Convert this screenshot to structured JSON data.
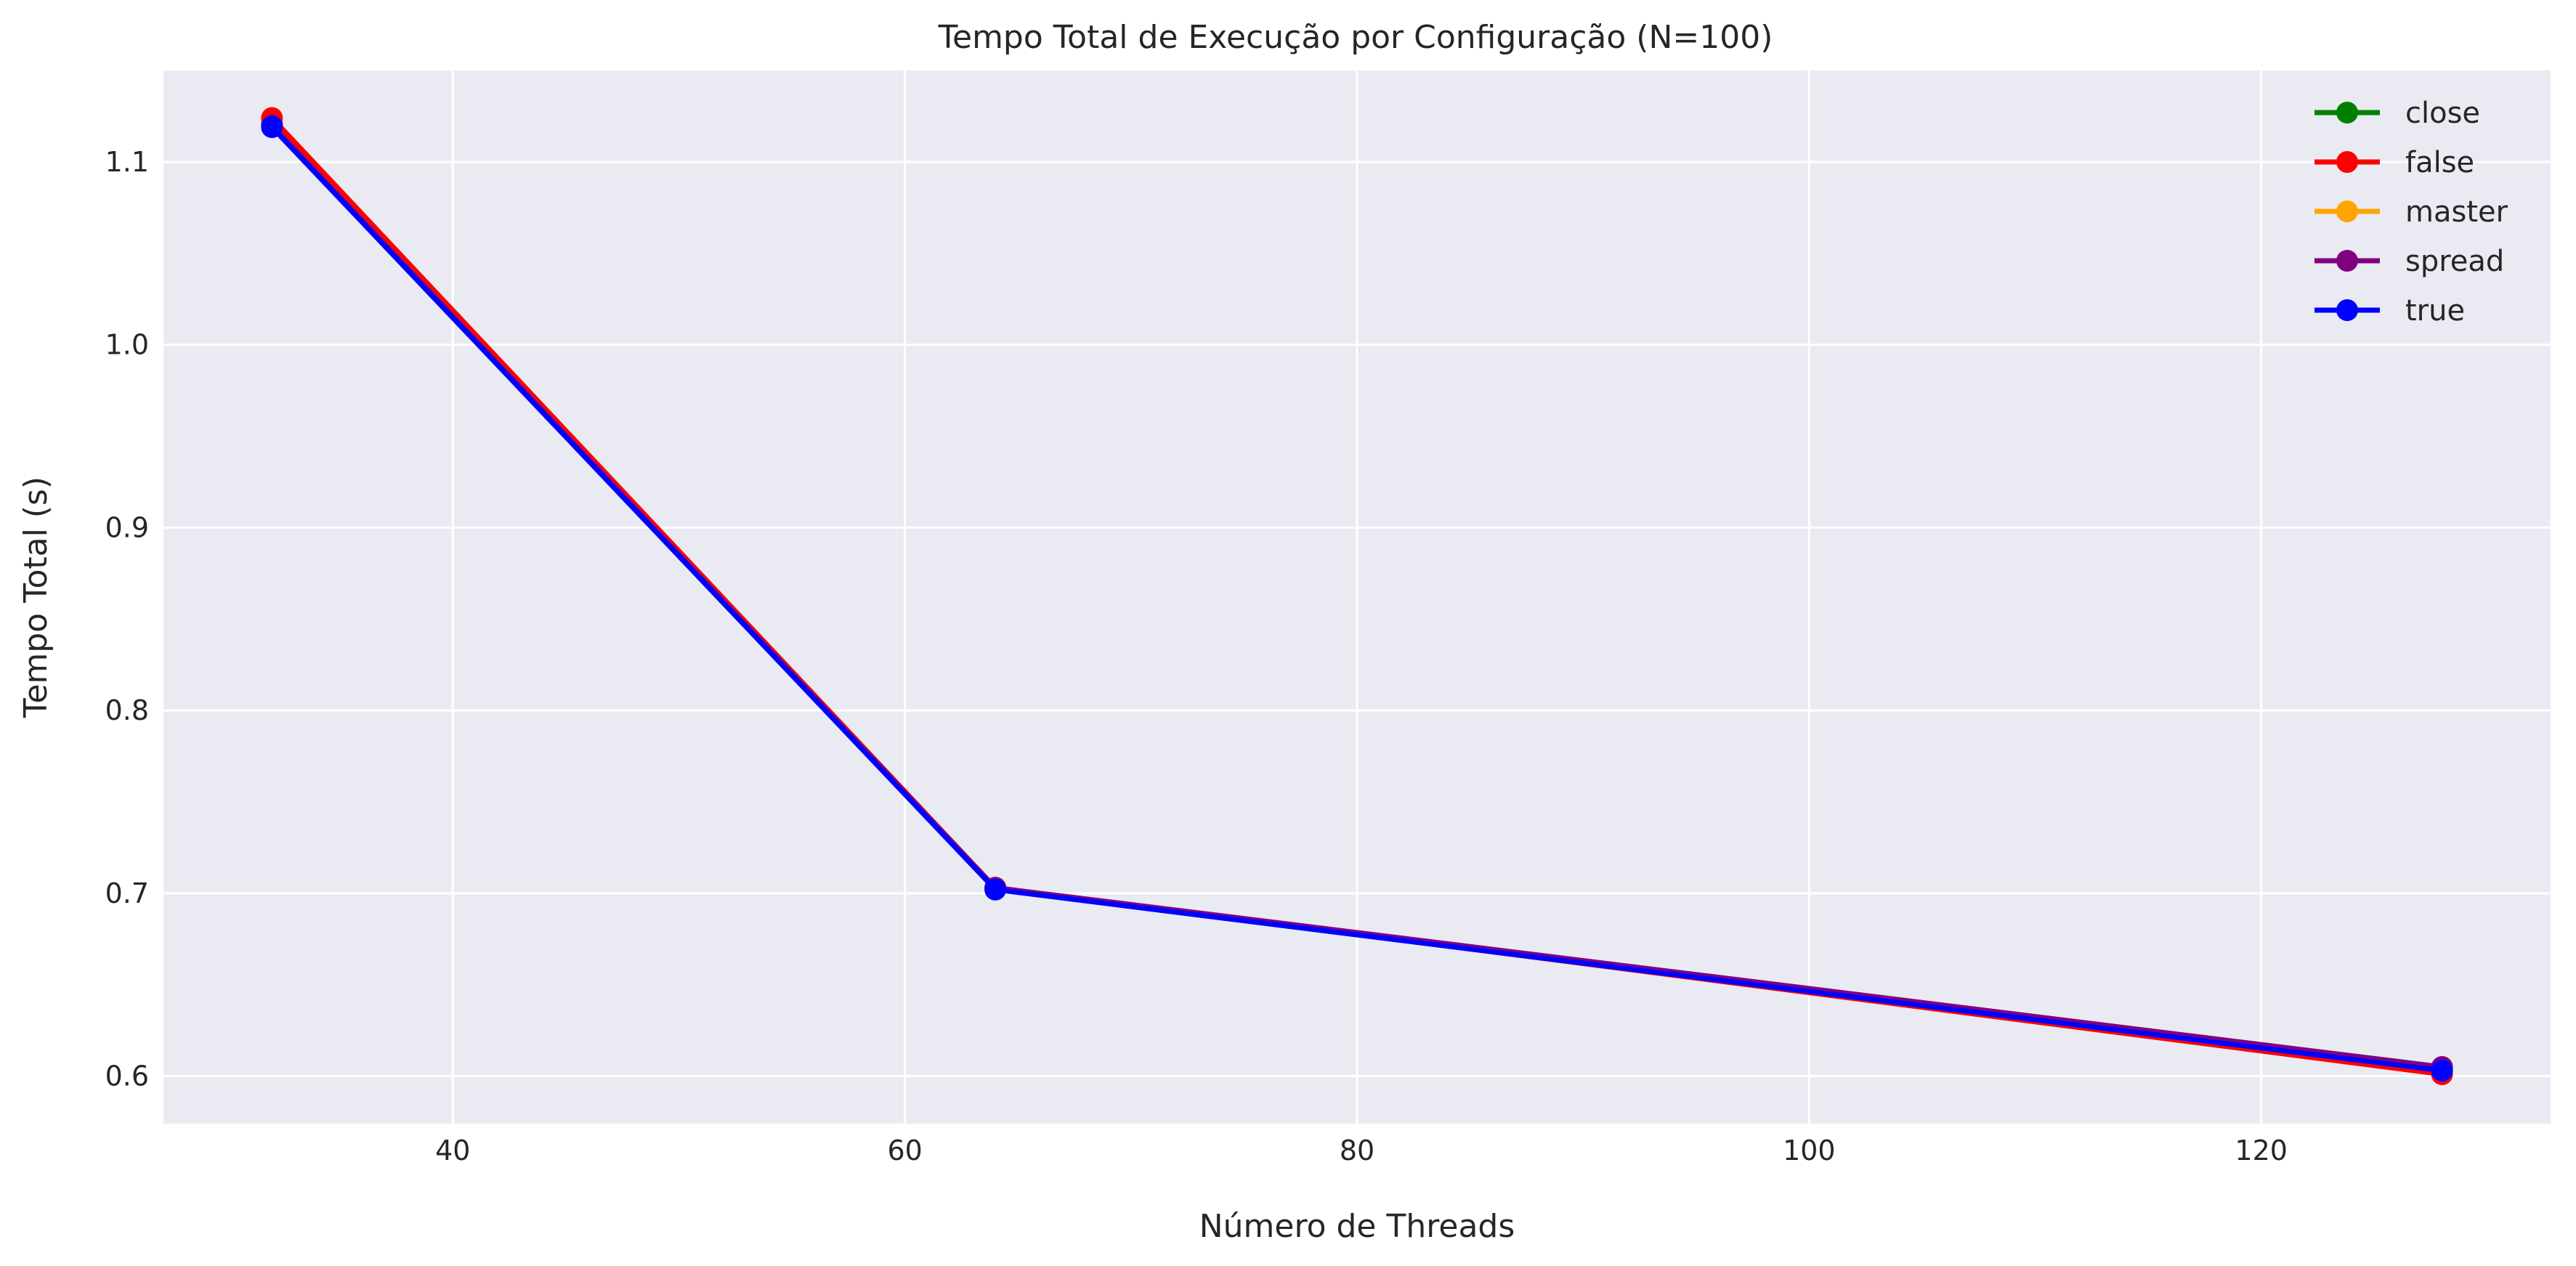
{
  "chart_data": {
    "type": "line",
    "title": "Tempo Total de Execução por Configuração (N=100)",
    "xlabel": "Número de Threads",
    "ylabel": "Tempo Total (s)",
    "xlim": [
      27.2,
      132.8
    ],
    "ylim": [
      0.574,
      1.15
    ],
    "x_ticks": [
      40,
      60,
      80,
      100,
      120
    ],
    "y_ticks": [
      0.6,
      0.7,
      0.8,
      0.9,
      1.0,
      1.1
    ],
    "x_tick_labels": [
      "40",
      "60",
      "80",
      "100",
      "120"
    ],
    "y_tick_labels": [
      "0.6",
      "0.7",
      "0.8",
      "0.9",
      "1.0",
      "1.1"
    ],
    "grid": true,
    "legend_position": "top-right",
    "x": [
      32,
      64,
      128
    ],
    "series": [
      {
        "name": "close",
        "color": "#008000",
        "values": [
          1.121,
          0.703,
          0.604
        ]
      },
      {
        "name": "false",
        "color": "#ff0000",
        "values": [
          1.124,
          0.703,
          0.601
        ]
      },
      {
        "name": "master",
        "color": "#ffa500",
        "values": [
          1.12,
          0.703,
          0.604
        ]
      },
      {
        "name": "spread",
        "color": "#800080",
        "values": [
          1.12,
          0.703,
          0.605
        ]
      },
      {
        "name": "true",
        "color": "#0000ff",
        "values": [
          1.119,
          0.702,
          0.603
        ]
      }
    ],
    "plot_background": "#eaeaf2",
    "grid_color": "#ffffff"
  }
}
